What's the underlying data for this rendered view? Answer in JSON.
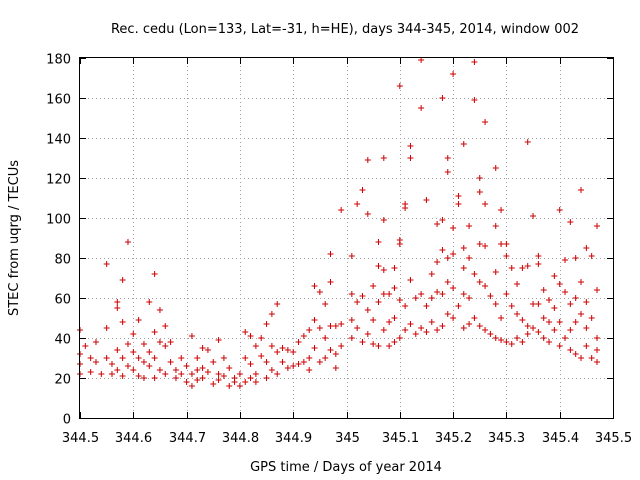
{
  "chart_data": {
    "type": "scatter",
    "title": "Rec. cedu (Lon=133, Lat=-31, h=HE), days 344-345, 2014, window 002",
    "xlabel": "GPS time / Days of year 2014",
    "ylabel": "STEC from uqrg / TECUs",
    "xlim": [
      344.5,
      345.5
    ],
    "ylim": [
      0,
      180
    ],
    "x_ticks": [
      344.5,
      344.6,
      344.7,
      344.8,
      344.9,
      345,
      345.1,
      345.2,
      345.3,
      345.4,
      345.5
    ],
    "x_tick_labels": [
      "344.5",
      "344.6",
      "344.7",
      "344.8",
      "344.9",
      "345",
      "345.1",
      "345.2",
      "345.3",
      "345.4",
      "345.5"
    ],
    "y_ticks": [
      0,
      20,
      40,
      60,
      80,
      100,
      120,
      140,
      160,
      180
    ],
    "y_tick_labels": [
      "0",
      "20",
      "40",
      "60",
      "80",
      "100",
      "120",
      "140",
      "160",
      "180"
    ],
    "grid": true,
    "marker": "+",
    "color": "#cc0000",
    "series": [
      {
        "points": [
          [
            344.5,
            44
          ],
          [
            344.5,
            32
          ],
          [
            344.5,
            27
          ],
          [
            344.5,
            22
          ],
          [
            344.51,
            36
          ],
          [
            344.52,
            30
          ],
          [
            344.52,
            23
          ],
          [
            344.53,
            38
          ],
          [
            344.53,
            28
          ],
          [
            344.54,
            22
          ],
          [
            344.55,
            77
          ],
          [
            344.55,
            45
          ],
          [
            344.55,
            30
          ],
          [
            344.56,
            22
          ],
          [
            344.56,
            27
          ],
          [
            344.57,
            58
          ],
          [
            344.57,
            55
          ],
          [
            344.57,
            34
          ],
          [
            344.57,
            24
          ],
          [
            344.58,
            69
          ],
          [
            344.58,
            48
          ],
          [
            344.58,
            30
          ],
          [
            344.58,
            21
          ],
          [
            344.59,
            88
          ],
          [
            344.59,
            37
          ],
          [
            344.59,
            26
          ],
          [
            344.6,
            42
          ],
          [
            344.6,
            33
          ],
          [
            344.6,
            24
          ],
          [
            344.61,
            49
          ],
          [
            344.61,
            30
          ],
          [
            344.61,
            21
          ],
          [
            344.62,
            37
          ],
          [
            344.62,
            28
          ],
          [
            344.62,
            20
          ],
          [
            344.63,
            58
          ],
          [
            344.63,
            33
          ],
          [
            344.63,
            26
          ],
          [
            344.64,
            72
          ],
          [
            344.64,
            43
          ],
          [
            344.64,
            30
          ],
          [
            344.64,
            20
          ],
          [
            344.65,
            54
          ],
          [
            344.65,
            38
          ],
          [
            344.65,
            24
          ],
          [
            344.66,
            46
          ],
          [
            344.66,
            36
          ],
          [
            344.66,
            22
          ],
          [
            344.67,
            38
          ],
          [
            344.67,
            28
          ],
          [
            344.68,
            20
          ],
          [
            344.68,
            24
          ],
          [
            344.69,
            30
          ],
          [
            344.69,
            22
          ],
          [
            344.7,
            18
          ],
          [
            344.7,
            26
          ],
          [
            344.71,
            41
          ],
          [
            344.71,
            22
          ],
          [
            344.71,
            16
          ],
          [
            344.72,
            30
          ],
          [
            344.72,
            24
          ],
          [
            344.72,
            19
          ],
          [
            344.73,
            35
          ],
          [
            344.73,
            25
          ],
          [
            344.73,
            20
          ],
          [
            344.74,
            34
          ],
          [
            344.74,
            23
          ],
          [
            344.75,
            17
          ],
          [
            344.75,
            28
          ],
          [
            344.76,
            39
          ],
          [
            344.76,
            22
          ],
          [
            344.76,
            19
          ],
          [
            344.77,
            30
          ],
          [
            344.77,
            21
          ],
          [
            344.78,
            16
          ],
          [
            344.78,
            25
          ],
          [
            344.79,
            20
          ],
          [
            344.79,
            18
          ],
          [
            344.8,
            22
          ],
          [
            344.8,
            16
          ],
          [
            344.81,
            43
          ],
          [
            344.81,
            30
          ],
          [
            344.81,
            18
          ],
          [
            344.82,
            41
          ],
          [
            344.82,
            27
          ],
          [
            344.82,
            20
          ],
          [
            344.83,
            36
          ],
          [
            344.83,
            22
          ],
          [
            344.83,
            18
          ],
          [
            344.84,
            40
          ],
          [
            344.84,
            31
          ],
          [
            344.85,
            28
          ],
          [
            344.85,
            20
          ],
          [
            344.85,
            47
          ],
          [
            344.86,
            52
          ],
          [
            344.86,
            36
          ],
          [
            344.86,
            24
          ],
          [
            344.87,
            57
          ],
          [
            344.87,
            33
          ],
          [
            344.87,
            22
          ],
          [
            344.88,
            35
          ],
          [
            344.88,
            28
          ],
          [
            344.89,
            34
          ],
          [
            344.89,
            25
          ],
          [
            344.9,
            33
          ],
          [
            344.9,
            26
          ],
          [
            344.91,
            38
          ],
          [
            344.91,
            27
          ],
          [
            344.92,
            41
          ],
          [
            344.92,
            28
          ],
          [
            344.93,
            44
          ],
          [
            344.93,
            30
          ],
          [
            344.93,
            24
          ],
          [
            344.94,
            66
          ],
          [
            344.94,
            49
          ],
          [
            344.94,
            35
          ],
          [
            344.95,
            63
          ],
          [
            344.95,
            45
          ],
          [
            344.95,
            28
          ],
          [
            344.96,
            57
          ],
          [
            344.96,
            40
          ],
          [
            344.96,
            30
          ],
          [
            344.97,
            82
          ],
          [
            344.97,
            68
          ],
          [
            344.97,
            46
          ],
          [
            344.97,
            34
          ],
          [
            344.98,
            46
          ],
          [
            344.98,
            32
          ],
          [
            344.98,
            25
          ],
          [
            344.99,
            104
          ],
          [
            344.99,
            47
          ],
          [
            344.99,
            36
          ],
          [
            345.01,
            81
          ],
          [
            345.01,
            62
          ],
          [
            345.01,
            49
          ],
          [
            345.01,
            40
          ],
          [
            345.02,
            107
          ],
          [
            345.02,
            58
          ],
          [
            345.02,
            45
          ],
          [
            345.03,
            114
          ],
          [
            345.03,
            61
          ],
          [
            345.03,
            38
          ],
          [
            345.04,
            129
          ],
          [
            345.04,
            102
          ],
          [
            345.04,
            54
          ],
          [
            345.04,
            42
          ],
          [
            345.05,
            66
          ],
          [
            345.05,
            49
          ],
          [
            345.05,
            37
          ],
          [
            345.06,
            88
          ],
          [
            345.06,
            76
          ],
          [
            345.06,
            58
          ],
          [
            345.06,
            36
          ],
          [
            345.07,
            130
          ],
          [
            345.07,
            99
          ],
          [
            345.07,
            74
          ],
          [
            345.07,
            62
          ],
          [
            345.07,
            44
          ],
          [
            345.08,
            62
          ],
          [
            345.08,
            48
          ],
          [
            345.08,
            36
          ],
          [
            345.09,
            75
          ],
          [
            345.09,
            65
          ],
          [
            345.09,
            50
          ],
          [
            345.09,
            38
          ],
          [
            345.1,
            166
          ],
          [
            345.1,
            89
          ],
          [
            345.1,
            87
          ],
          [
            345.1,
            59
          ],
          [
            345.1,
            40
          ],
          [
            345.11,
            107
          ],
          [
            345.11,
            105
          ],
          [
            345.11,
            56
          ],
          [
            345.11,
            44
          ],
          [
            345.12,
            136
          ],
          [
            345.12,
            130
          ],
          [
            345.12,
            69
          ],
          [
            345.12,
            47
          ],
          [
            345.13,
            60
          ],
          [
            345.13,
            42
          ],
          [
            345.14,
            179
          ],
          [
            345.14,
            155
          ],
          [
            345.14,
            62
          ],
          [
            345.14,
            45
          ],
          [
            345.15,
            109
          ],
          [
            345.15,
            56
          ],
          [
            345.15,
            43
          ],
          [
            345.16,
            72
          ],
          [
            345.16,
            60
          ],
          [
            345.16,
            48
          ],
          [
            345.17,
            97
          ],
          [
            345.17,
            78
          ],
          [
            345.17,
            63
          ],
          [
            345.17,
            44
          ],
          [
            345.18,
            160
          ],
          [
            345.18,
            99
          ],
          [
            345.18,
            84
          ],
          [
            345.18,
            62
          ],
          [
            345.18,
            46
          ],
          [
            345.19,
            130
          ],
          [
            345.19,
            123
          ],
          [
            345.19,
            80
          ],
          [
            345.19,
            68
          ],
          [
            345.19,
            52
          ],
          [
            345.2,
            172
          ],
          [
            345.2,
            95
          ],
          [
            345.2,
            82
          ],
          [
            345.2,
            65
          ],
          [
            345.2,
            50
          ],
          [
            345.21,
            111
          ],
          [
            345.21,
            107
          ],
          [
            345.21,
            56
          ],
          [
            345.22,
            137
          ],
          [
            345.22,
            85
          ],
          [
            345.22,
            75
          ],
          [
            345.22,
            62
          ],
          [
            345.22,
            45
          ],
          [
            345.23,
            96
          ],
          [
            345.23,
            80
          ],
          [
            345.23,
            60
          ],
          [
            345.23,
            47
          ],
          [
            345.24,
            178
          ],
          [
            345.24,
            159
          ],
          [
            345.24,
            72
          ],
          [
            345.24,
            50
          ],
          [
            345.25,
            120
          ],
          [
            345.25,
            113
          ],
          [
            345.25,
            87
          ],
          [
            345.25,
            68
          ],
          [
            345.25,
            46
          ],
          [
            345.26,
            148
          ],
          [
            345.26,
            107
          ],
          [
            345.26,
            86
          ],
          [
            345.26,
            66
          ],
          [
            345.26,
            44
          ],
          [
            345.27,
            61
          ],
          [
            345.27,
            42
          ],
          [
            345.28,
            125
          ],
          [
            345.28,
            96
          ],
          [
            345.28,
            73
          ],
          [
            345.28,
            57
          ],
          [
            345.28,
            40
          ],
          [
            345.29,
            104
          ],
          [
            345.29,
            87
          ],
          [
            345.29,
            50
          ],
          [
            345.29,
            39
          ],
          [
            345.3,
            87
          ],
          [
            345.3,
            81
          ],
          [
            345.3,
            62
          ],
          [
            345.3,
            38
          ],
          [
            345.31,
            75
          ],
          [
            345.31,
            56
          ],
          [
            345.31,
            37
          ],
          [
            345.32,
            67
          ],
          [
            345.32,
            52
          ],
          [
            345.32,
            40
          ],
          [
            345.33,
            75
          ],
          [
            345.33,
            49
          ],
          [
            345.33,
            38
          ],
          [
            345.34,
            138
          ],
          [
            345.34,
            76
          ],
          [
            345.34,
            46
          ],
          [
            345.34,
            42
          ],
          [
            345.35,
            101
          ],
          [
            345.35,
            57
          ],
          [
            345.35,
            45
          ],
          [
            345.36,
            81
          ],
          [
            345.36,
            77
          ],
          [
            345.36,
            57
          ],
          [
            345.36,
            43
          ],
          [
            345.37,
            64
          ],
          [
            345.37,
            50
          ],
          [
            345.37,
            40
          ],
          [
            345.38,
            59
          ],
          [
            345.38,
            48
          ],
          [
            345.38,
            38
          ],
          [
            345.39,
            71
          ],
          [
            345.39,
            55
          ],
          [
            345.39,
            44
          ],
          [
            345.4,
            104
          ],
          [
            345.4,
            67
          ],
          [
            345.4,
            48
          ],
          [
            345.4,
            36
          ],
          [
            345.41,
            79
          ],
          [
            345.41,
            63
          ],
          [
            345.41,
            40
          ],
          [
            345.42,
            98
          ],
          [
            345.42,
            57
          ],
          [
            345.42,
            44
          ],
          [
            345.42,
            34
          ],
          [
            345.43,
            80
          ],
          [
            345.43,
            60
          ],
          [
            345.43,
            48
          ],
          [
            345.43,
            32
          ],
          [
            345.44,
            114
          ],
          [
            345.44,
            68
          ],
          [
            345.44,
            52
          ],
          [
            345.44,
            30
          ],
          [
            345.45,
            85
          ],
          [
            345.45,
            58
          ],
          [
            345.45,
            45
          ],
          [
            345.45,
            36
          ],
          [
            345.46,
            81
          ],
          [
            345.46,
            50
          ],
          [
            345.46,
            30
          ],
          [
            345.47,
            96
          ],
          [
            345.47,
            64
          ],
          [
            345.47,
            40
          ],
          [
            345.47,
            34
          ],
          [
            345.47,
            28
          ]
        ]
      }
    ]
  }
}
